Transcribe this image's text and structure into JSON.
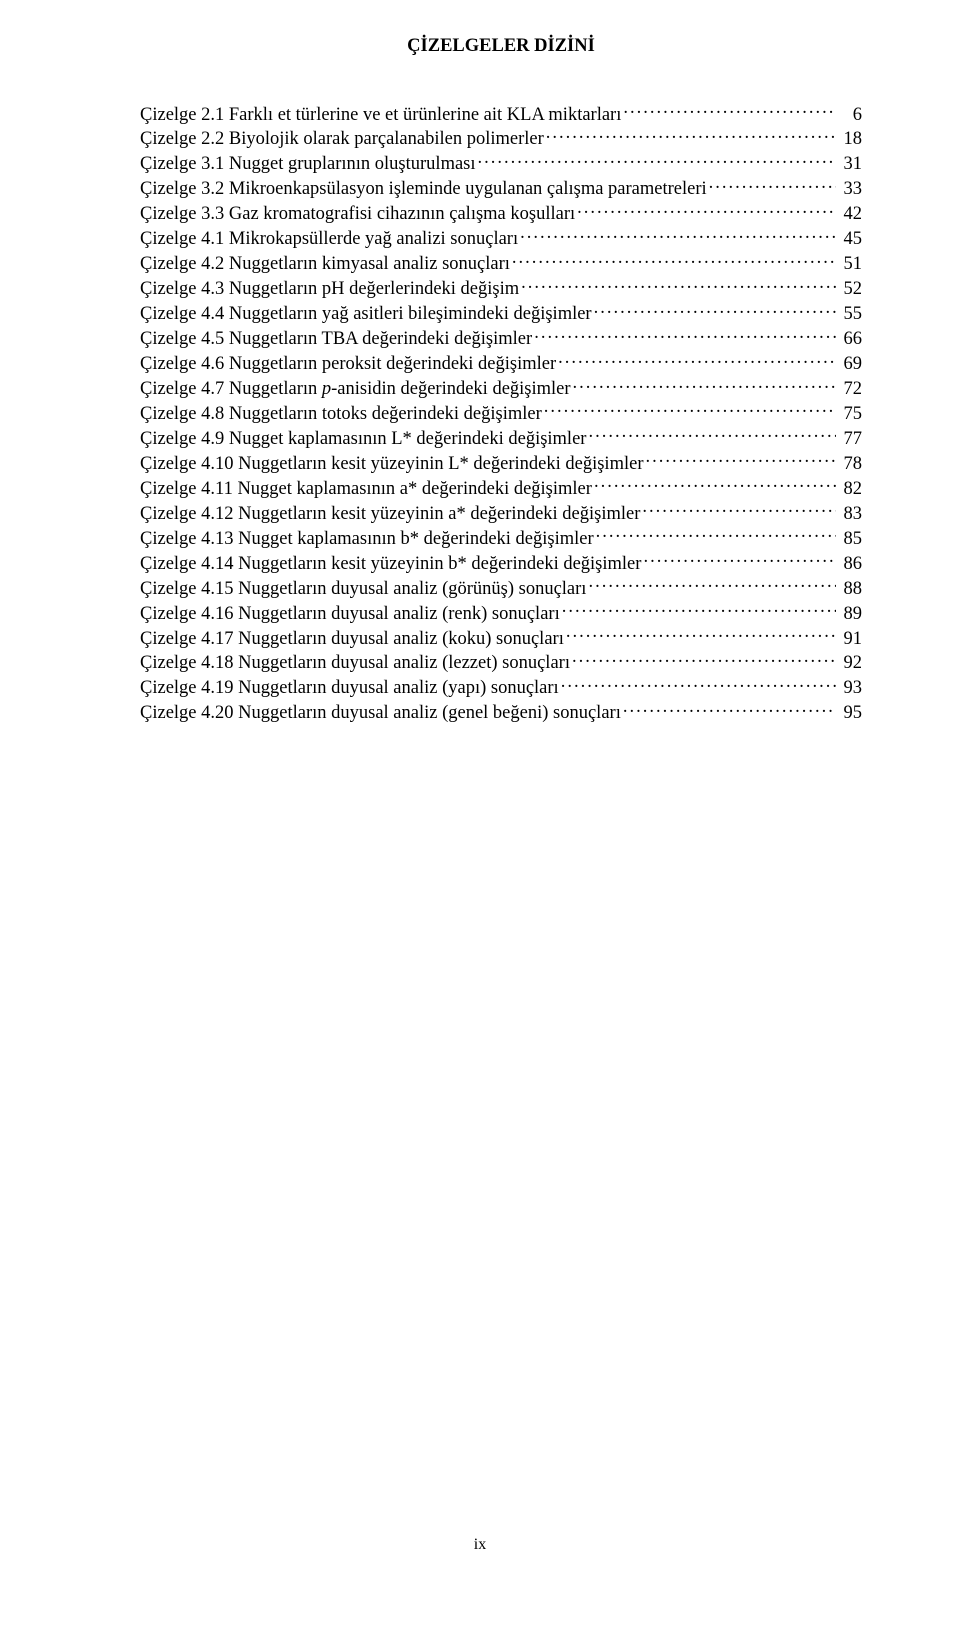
{
  "page": {
    "title": "ÇİZELGELER DİZİNİ",
    "footer": "ix",
    "background_color": "#ffffff",
    "text_color": "#000000",
    "font_family": "Times New Roman",
    "title_fontsize": 18.5,
    "body_fontsize": 18.5,
    "title_weight": "bold",
    "leader_char": "."
  },
  "entries": [
    {
      "label": "Çizelge 2.1 Farklı et türlerine ve et ürünlerine ait KLA miktarları",
      "page": "6"
    },
    {
      "label": "Çizelge 2.2 Biyolojik olarak parçalanabilen polimerler",
      "page": "18"
    },
    {
      "label": "Çizelge 3.1 Nugget gruplarının oluşturulması",
      "page": "31"
    },
    {
      "label": "Çizelge 3.2 Mikroenkapsülasyon işleminde uygulanan çalışma parametreleri",
      "page": "33"
    },
    {
      "label": "Çizelge 3.3 Gaz kromatografisi cihazının çalışma koşulları",
      "page": "42"
    },
    {
      "label": "Çizelge 4.1 Mikrokapsüllerde yağ analizi sonuçları",
      "page": "45"
    },
    {
      "label": "Çizelge 4.2 Nuggetların kimyasal analiz sonuçları",
      "page": "51"
    },
    {
      "label": "Çizelge 4.3 Nuggetların pH değerlerindeki değişim",
      "page": "52"
    },
    {
      "label": "Çizelge 4.4 Nuggetların yağ asitleri bileşimindeki değişimler",
      "page": "55"
    },
    {
      "label": "Çizelge 4.5 Nuggetların TBA değerindeki değişimler",
      "page": "66"
    },
    {
      "label": "Çizelge 4.6 Nuggetların peroksit değerindeki değişimler",
      "page": "69"
    },
    {
      "label_pre": "Çizelge 4.7 Nuggetların ",
      "label_italic": "p",
      "label_post": "-anisidin değerindeki değişimler",
      "page": "72"
    },
    {
      "label": "Çizelge 4.8 Nuggetların totoks değerindeki değişimler",
      "page": "75"
    },
    {
      "label": "Çizelge 4.9 Nugget kaplamasının L* değerindeki değişimler",
      "page": "77"
    },
    {
      "label": "Çizelge 4.10 Nuggetların kesit yüzeyinin L* değerindeki değişimler",
      "page": "78"
    },
    {
      "label": "Çizelge 4.11 Nugget kaplamasının a* değerindeki değişimler",
      "page": "82"
    },
    {
      "label": "Çizelge 4.12 Nuggetların kesit yüzeyinin a* değerindeki değişimler",
      "page": "83"
    },
    {
      "label": "Çizelge 4.13 Nugget kaplamasının b* değerindeki değişimler",
      "page": "85"
    },
    {
      "label": "Çizelge 4.14 Nuggetların kesit yüzeyinin b* değerindeki değişimler",
      "page": "86"
    },
    {
      "label": "Çizelge 4.15 Nuggetların duyusal analiz (görünüş) sonuçları",
      "page": "88"
    },
    {
      "label": "Çizelge 4.16 Nuggetların duyusal analiz (renk) sonuçları",
      "page": "89"
    },
    {
      "label": "Çizelge 4.17 Nuggetların duyusal analiz (koku) sonuçları",
      "page": "91"
    },
    {
      "label": "Çizelge 4.18 Nuggetların duyusal analiz (lezzet) sonuçları",
      "page": "92"
    },
    {
      "label": "Çizelge 4.19 Nuggetların duyusal analiz (yapı) sonuçları",
      "page": "93"
    },
    {
      "label": "Çizelge 4.20 Nuggetların duyusal analiz (genel beğeni) sonuçları",
      "page": "95"
    }
  ]
}
